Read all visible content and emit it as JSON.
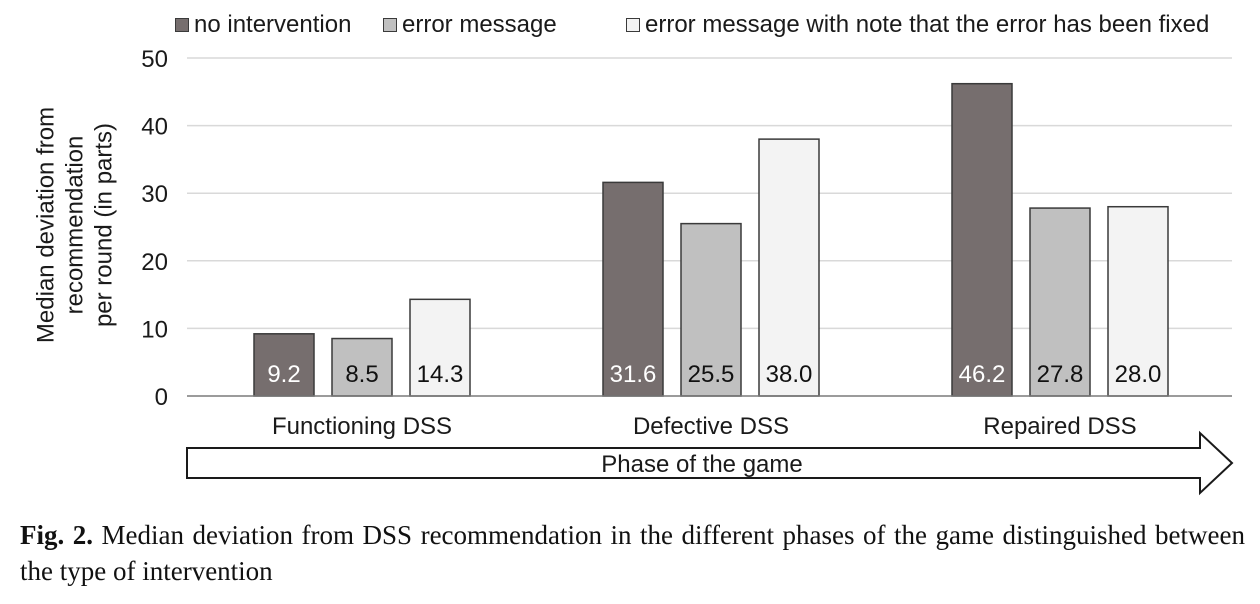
{
  "chart_data": {
    "type": "bar",
    "categories": [
      "Functioning DSS",
      "Defective DSS",
      "Repaired DSS"
    ],
    "series": [
      {
        "name": "no intervention",
        "values": [
          9.2,
          31.6,
          46.2
        ],
        "labels": [
          "9.2",
          "31.6",
          "46.2"
        ],
        "color": "#766e6e",
        "label_color": "#ffffff"
      },
      {
        "name": "error message",
        "values": [
          8.5,
          25.5,
          27.8
        ],
        "labels": [
          "8.5",
          "25.5",
          "27.8"
        ],
        "color": "#c0c0c0",
        "label_color": "#111111"
      },
      {
        "name": "error message with note that the error has been fixed",
        "values": [
          14.3,
          38.0,
          28.0
        ],
        "labels": [
          "14.3",
          "38.0",
          "28.0"
        ],
        "color": "#f3f3f3",
        "label_color": "#111111"
      }
    ],
    "title": "",
    "xlabel": "Phase of the game",
    "ylabel": "Median deviation from recommendation per round (in parts)",
    "ylabel_lines": [
      "Median deviation from",
      "recommendation",
      "per round (in parts)"
    ],
    "ylim": [
      0,
      50
    ],
    "yticks": [
      0,
      10,
      20,
      30,
      40,
      50
    ],
    "grid": true,
    "legend_position": "top"
  },
  "caption": {
    "label": "Fig. 2.",
    "text": "Median deviation from DSS recommendation in the different phases of the game distinguished between the type of intervention"
  }
}
